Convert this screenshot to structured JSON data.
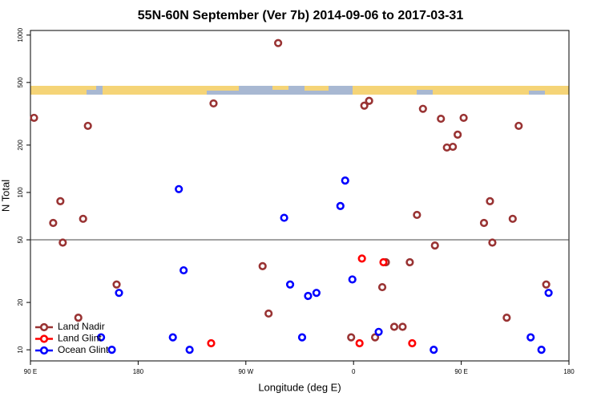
{
  "chart_data": {
    "type": "scatter",
    "title": "55N-60N September (Ver 7b)   2014-09-06 to 2017-03-31",
    "x_label": "Longitude (deg E)",
    "y_label": "N Total",
    "xlim": [
      90,
      540
    ],
    "ylim": [
      8.5,
      1070
    ],
    "log_y": true,
    "xticks": [
      {
        "value": 90,
        "label": "90 E"
      },
      180,
      {
        "value": 270,
        "label": "90 W"
      },
      {
        "value": 360,
        "label": "0"
      },
      {
        "value": 450,
        "label": "90 E"
      },
      {
        "value": 540,
        "label": "180"
      }
    ],
    "yticks": [
      10,
      20,
      50,
      100,
      200,
      500,
      1000
    ],
    "hline": 50,
    "legend": "bottom-left",
    "series": [
      {
        "name": "Land Nadir",
        "color": "#993333",
        "x": [
          93,
          138,
          115,
          109,
          134,
          117,
          130,
          162,
          243,
          297,
          284,
          289,
          358,
          369,
          373,
          378,
          384,
          387,
          394,
          401,
          407,
          413,
          418,
          428,
          433,
          438,
          443,
          447,
          452,
          469,
          474,
          476,
          488,
          493,
          498,
          521
        ],
        "values": [
          298,
          265,
          88,
          64,
          68,
          48,
          16,
          26,
          368,
          890,
          34,
          17,
          12,
          356,
          382,
          12,
          25,
          36,
          14,
          14,
          36,
          72,
          340,
          46,
          294,
          193,
          195,
          233,
          298,
          64,
          88,
          48,
          16,
          68,
          265,
          26
        ]
      },
      {
        "name": "Land Glint",
        "color": "#ff0000",
        "x": [
          241,
          367,
          365,
          385,
          409
        ],
        "values": [
          11,
          38,
          11,
          36,
          11
        ]
      },
      {
        "name": "Ocean Glint",
        "color": "#0000ff",
        "x": [
          214,
          218,
          164,
          149,
          158,
          209,
          223,
          302,
          307,
          317,
          322,
          329,
          349,
          353,
          359,
          381,
          427,
          508,
          517,
          523
        ],
        "values": [
          105,
          32,
          23,
          12,
          10,
          12,
          10,
          69,
          26,
          12,
          22,
          23,
          82,
          119,
          28,
          13,
          10,
          12,
          10,
          23
        ]
      }
    ]
  }
}
